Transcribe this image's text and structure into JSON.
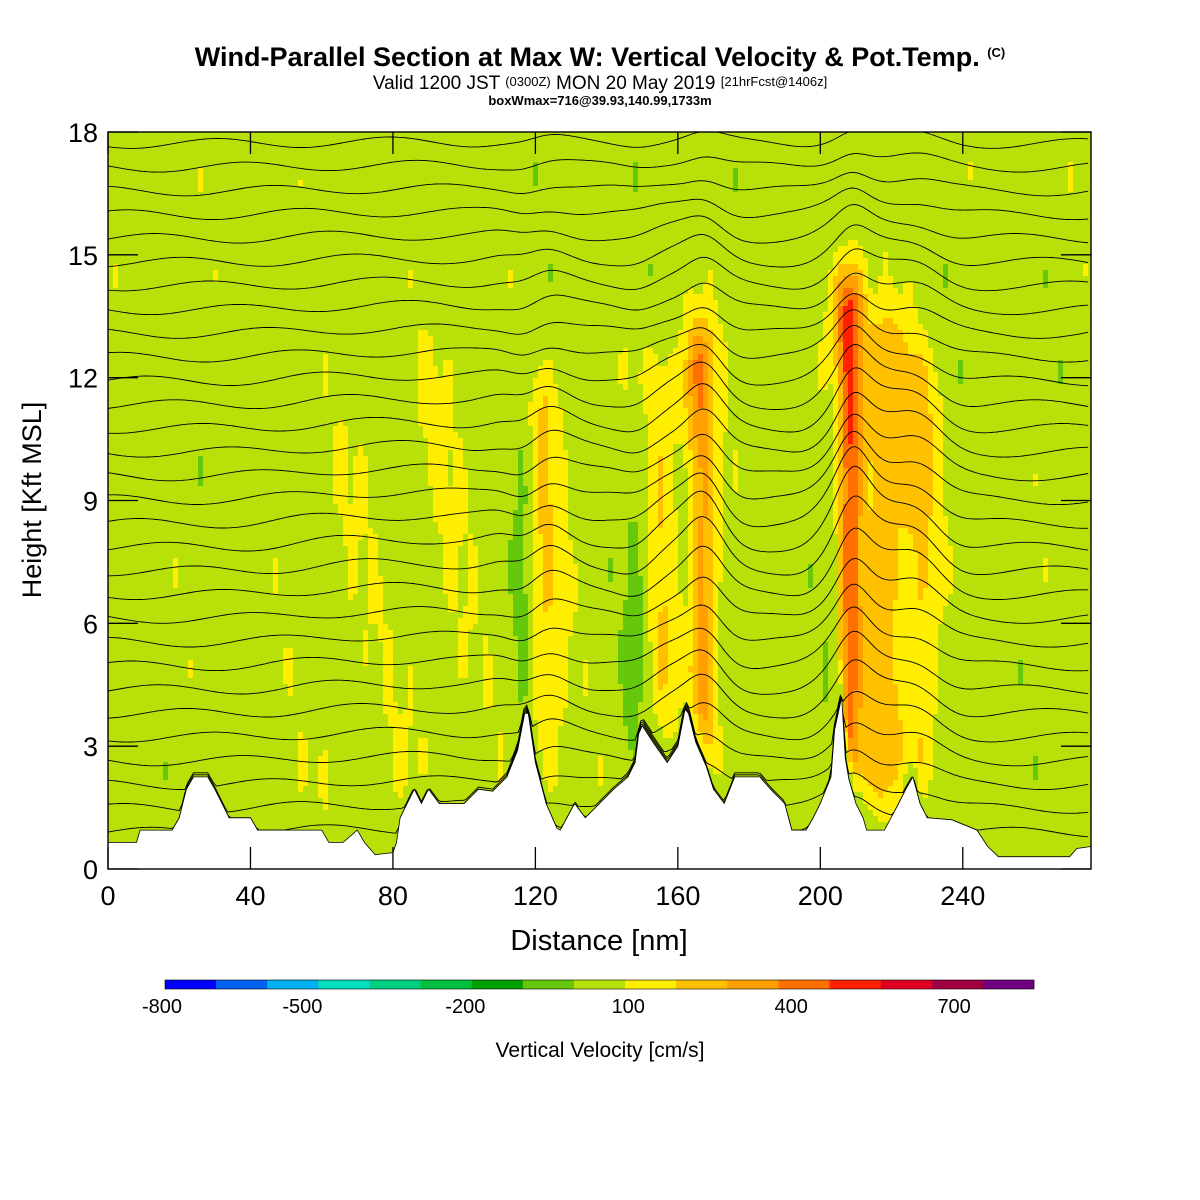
{
  "header": {
    "title_main": "Wind-Parallel Section at Max W: Vertical Velocity & Pot.Temp.",
    "title_mark": "(C)",
    "valid_pre": "Valid 1200 JST",
    "valid_utc": "(0300Z)",
    "valid_date": "MON 20 May 2019",
    "valid_fcst": "[21hrFcst@1406z]",
    "box_info": "boxWmax=716@39.93,140.99,1733m"
  },
  "chart_data": {
    "type": "heatmap",
    "xlabel": "Distance [nm]",
    "ylabel": "Height [Kft MSL]",
    "xlim": [
      0,
      276
    ],
    "ylim": [
      0,
      18
    ],
    "x_ticks": [
      0,
      40,
      80,
      120,
      160,
      200,
      240
    ],
    "y_ticks": [
      0,
      3,
      6,
      9,
      12,
      15,
      18
    ],
    "terrain": [
      [
        0,
        0.65
      ],
      [
        8,
        0.65
      ],
      [
        9,
        0.95
      ],
      [
        18,
        0.95
      ],
      [
        20,
        1.25
      ],
      [
        21,
        1.6
      ],
      [
        22,
        1.95
      ],
      [
        24,
        2.25
      ],
      [
        28,
        2.25
      ],
      [
        30,
        1.95
      ],
      [
        32,
        1.6
      ],
      [
        34,
        1.25
      ],
      [
        40,
        1.25
      ],
      [
        42,
        0.95
      ],
      [
        60,
        0.95
      ],
      [
        62,
        0.65
      ],
      [
        66,
        0.65
      ],
      [
        70,
        0.95
      ],
      [
        72,
        0.65
      ],
      [
        75,
        0.35
      ],
      [
        80,
        0.4
      ],
      [
        81,
        0.65
      ],
      [
        82,
        1.25
      ],
      [
        84,
        1.6
      ],
      [
        86,
        1.95
      ],
      [
        88,
        1.6
      ],
      [
        90,
        1.95
      ],
      [
        93,
        1.6
      ],
      [
        100,
        1.6
      ],
      [
        104,
        1.95
      ],
      [
        108,
        1.9
      ],
      [
        112,
        2.25
      ],
      [
        115,
        2.9
      ],
      [
        117,
        3.8
      ],
      [
        118,
        3.8
      ],
      [
        120,
        2.6
      ],
      [
        123,
        1.6
      ],
      [
        126,
        1.0
      ],
      [
        127,
        0.95
      ],
      [
        131,
        1.6
      ],
      [
        134,
        1.25
      ],
      [
        138,
        1.6
      ],
      [
        142,
        1.95
      ],
      [
        146,
        2.25
      ],
      [
        148,
        2.6
      ],
      [
        149,
        3.3
      ],
      [
        150,
        3.5
      ],
      [
        153,
        3.1
      ],
      [
        157,
        2.6
      ],
      [
        160,
        3.0
      ],
      [
        162,
        3.9
      ],
      [
        163,
        3.8
      ],
      [
        165,
        3.1
      ],
      [
        168,
        2.5
      ],
      [
        170,
        1.95
      ],
      [
        173,
        1.6
      ],
      [
        176,
        2.25
      ],
      [
        183,
        2.25
      ],
      [
        186,
        1.95
      ],
      [
        190,
        1.6
      ],
      [
        192,
        0.95
      ],
      [
        196,
        0.95
      ],
      [
        198,
        1.25
      ],
      [
        200,
        1.6
      ],
      [
        203,
        2.25
      ],
      [
        204,
        3.4
      ],
      [
        206,
        4.2
      ],
      [
        207,
        2.7
      ],
      [
        208,
        2.2
      ],
      [
        210,
        1.6
      ],
      [
        212,
        1.25
      ],
      [
        213,
        0.95
      ],
      [
        218,
        0.95
      ],
      [
        222,
        1.6
      ],
      [
        224,
        1.95
      ],
      [
        226,
        2.25
      ],
      [
        228,
        1.6
      ],
      [
        230,
        1.25
      ],
      [
        237,
        1.2
      ],
      [
        244,
        0.95
      ],
      [
        247,
        0.55
      ],
      [
        250,
        0.3
      ],
      [
        270,
        0.3
      ],
      [
        272,
        0.5
      ],
      [
        276,
        0.55
      ]
    ],
    "updrafts": [
      {
        "x": 121,
        "top": 11.0,
        "w": 4.5,
        "peak": 160
      },
      {
        "x": 154,
        "top": 11.5,
        "w": 5.0,
        "peak": 140
      },
      {
        "x": 166,
        "top": 12.2,
        "w": 3.2,
        "peak": 330
      },
      {
        "x": 208,
        "top": 13.6,
        "w": 3.0,
        "peak": 480
      },
      {
        "x": 218,
        "top": 12.5,
        "w": 5.0,
        "peak": 210
      },
      {
        "x": 228,
        "top": 11.5,
        "w": 3.5,
        "peak": 160
      },
      {
        "x": 92,
        "top": 12.0,
        "w": 9.0,
        "peak": 40
      },
      {
        "x": 65,
        "top": 10.0,
        "w": 8.0,
        "peak": 30
      }
    ],
    "downdrafts": [
      {
        "x": 117,
        "top": 11.0,
        "w": 2.5,
        "peak": -150
      },
      {
        "x": 149,
        "top": 10.5,
        "w": 3.0,
        "peak": -140
      },
      {
        "x": 163,
        "top": 9.5,
        "w": 2.5,
        "peak": -160
      },
      {
        "x": 205,
        "top": 11.0,
        "w": 2.2,
        "peak": -200
      },
      {
        "x": 211,
        "top": 9.0,
        "w": 2.5,
        "peak": -130
      },
      {
        "x": 224,
        "top": 7.0,
        "w": 4.0,
        "peak": -60
      }
    ],
    "colorbar": {
      "label": "Vertical Velocity [cm/s]",
      "min": -800,
      "max": 800,
      "tick_labels": [
        "-800",
        "-500",
        "-200",
        "100",
        "400",
        "700"
      ],
      "tick_values": [
        -800,
        -500,
        -200,
        100,
        400,
        700
      ],
      "colors": [
        "#0000ff",
        "#0060f0",
        "#00b0f0",
        "#00e0c0",
        "#00d080",
        "#00c040",
        "#00a000",
        "#66c80a",
        "#b8e10a",
        "#ffee00",
        "#ffc000",
        "#ffa000",
        "#ff7000",
        "#ff2000",
        "#e00020",
        "#a00040",
        "#700080"
      ]
    },
    "theta_lines": 30
  }
}
